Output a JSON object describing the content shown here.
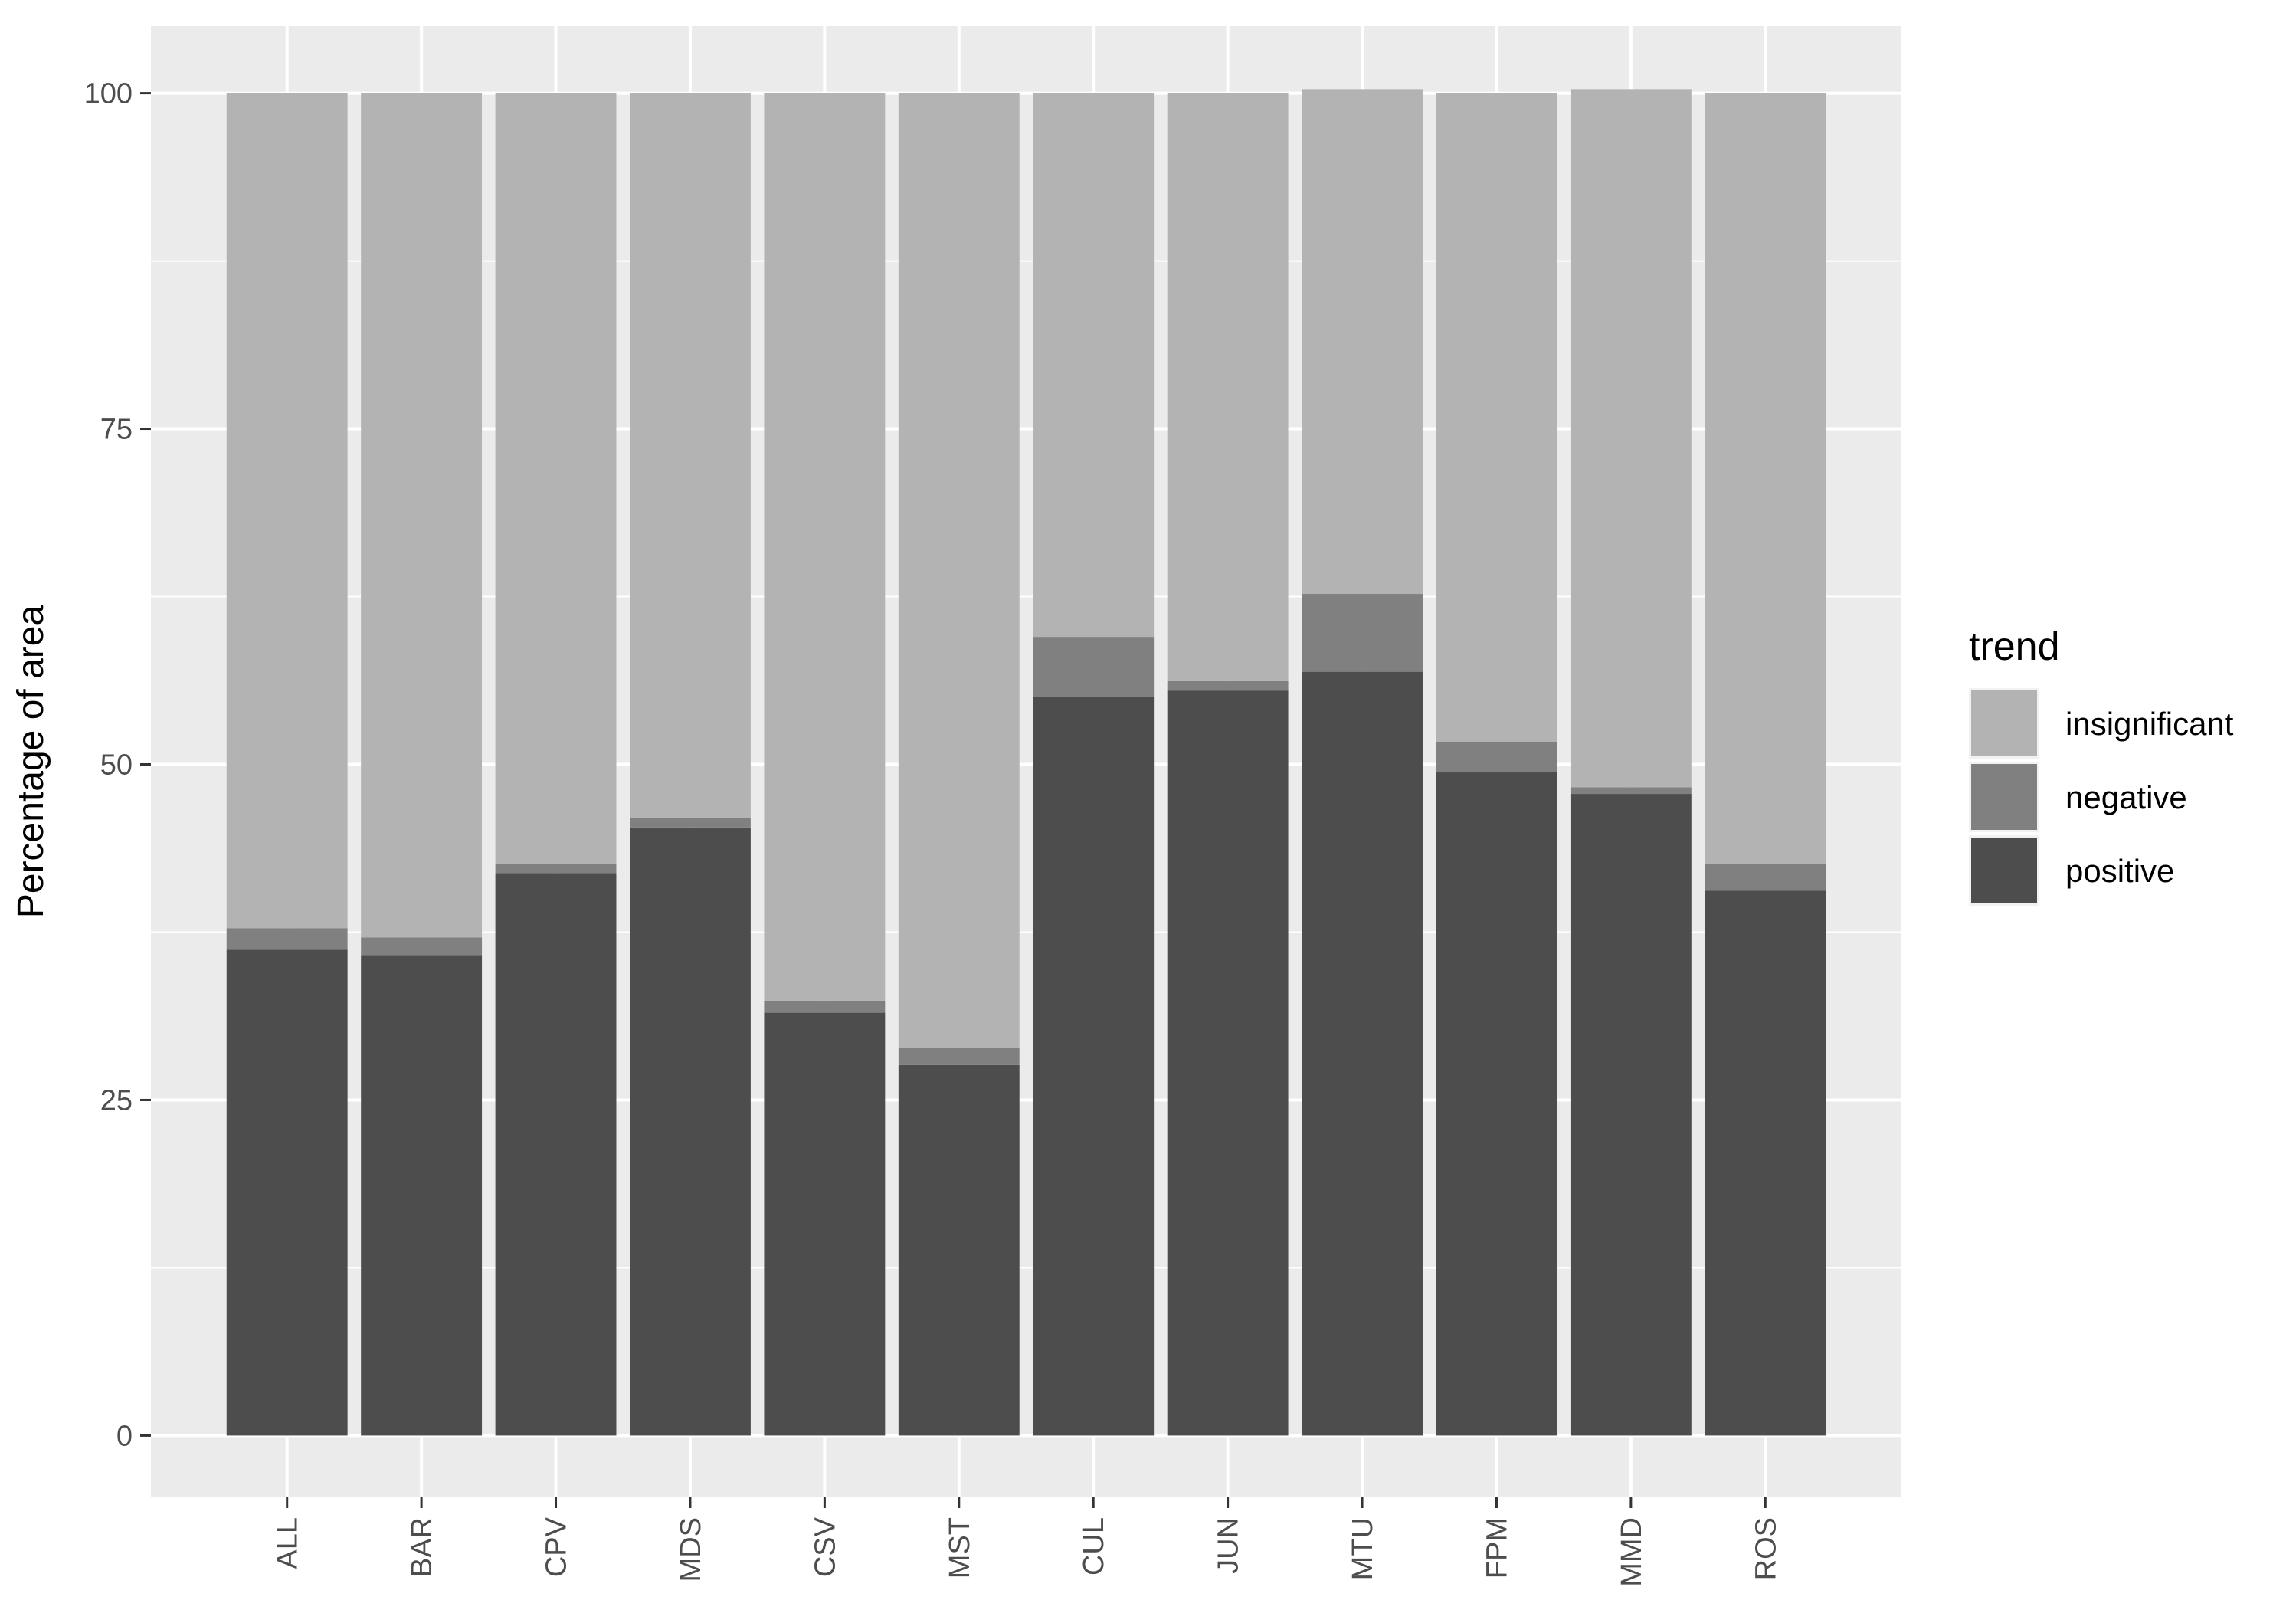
{
  "chart_data": {
    "type": "bar",
    "stacked": true,
    "categories": [
      "ALL",
      "BAR",
      "CPV",
      "MDS",
      "CSV",
      "MST",
      "CUL",
      "JUN",
      "MTU",
      "FPM",
      "MMD",
      "ROS"
    ],
    "series": [
      {
        "name": "positive",
        "values": [
          36.2,
          35.8,
          41.9,
          45.3,
          31.5,
          27.6,
          55.0,
          55.5,
          56.9,
          49.4,
          47.8,
          40.6
        ]
      },
      {
        "name": "negative",
        "values": [
          1.6,
          1.3,
          0.7,
          0.7,
          0.9,
          1.3,
          4.5,
          0.7,
          5.8,
          2.3,
          0.5,
          2.0
        ]
      },
      {
        "name": "insignificant",
        "values": [
          62.2,
          62.9,
          57.4,
          54.0,
          67.6,
          71.1,
          40.5,
          43.8,
          37.6,
          48.3,
          52.0,
          57.4
        ]
      }
    ],
    "colors": {
      "insignificant": "#b3b3b3",
      "negative": "#808080",
      "positive": "#4d4d4d"
    },
    "panel_background": "#ebebeb",
    "grid": true,
    "ylabel": "Percentage of area",
    "xlabel": "",
    "ylim": [
      -4.6,
      105
    ],
    "yticks": [
      0,
      25,
      50,
      75,
      100
    ],
    "ytick_labels": [
      "0",
      "25",
      "50",
      "75",
      "100"
    ],
    "x_tick_rotation": -90,
    "legend": {
      "title": "trend",
      "position": "right",
      "entries": [
        "insignificant",
        "negative",
        "positive"
      ]
    }
  }
}
